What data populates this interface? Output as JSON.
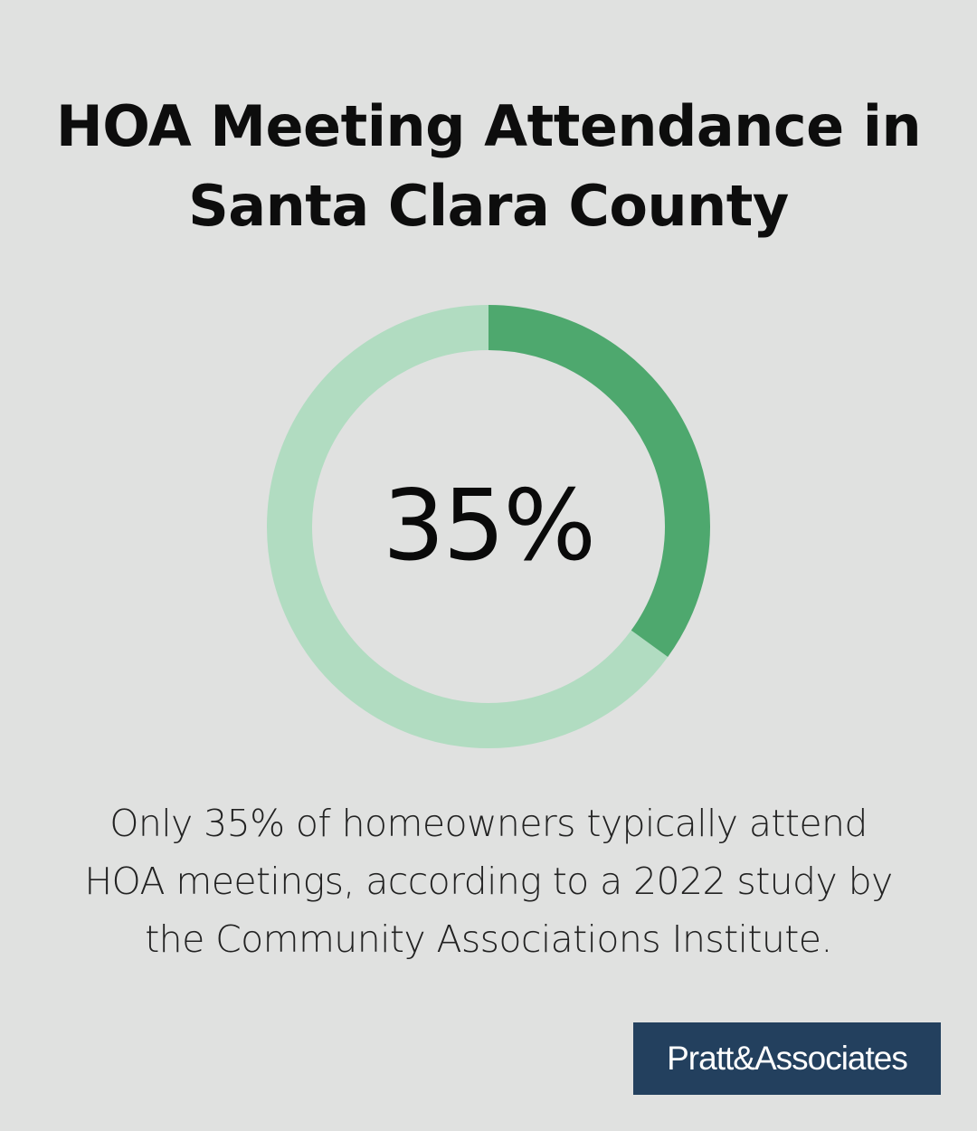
{
  "title_lines": [
    "HOA Meeting Attendance in",
    "Santa Clara County"
  ],
  "chart_data": {
    "type": "pie",
    "variant": "donut",
    "values": [
      35,
      65
    ],
    "center_label": "35%",
    "colors": {
      "filled": "#4ea86e",
      "remaining": "#b1dcc1"
    }
  },
  "caption_lines": [
    "Only 35% of homeowners typically attend",
    "HOA meetings, according to a 2022 study by",
    "the Community Associations Institute."
  ],
  "logo": {
    "text": "Pratt&Associates",
    "background": "#23405e"
  }
}
